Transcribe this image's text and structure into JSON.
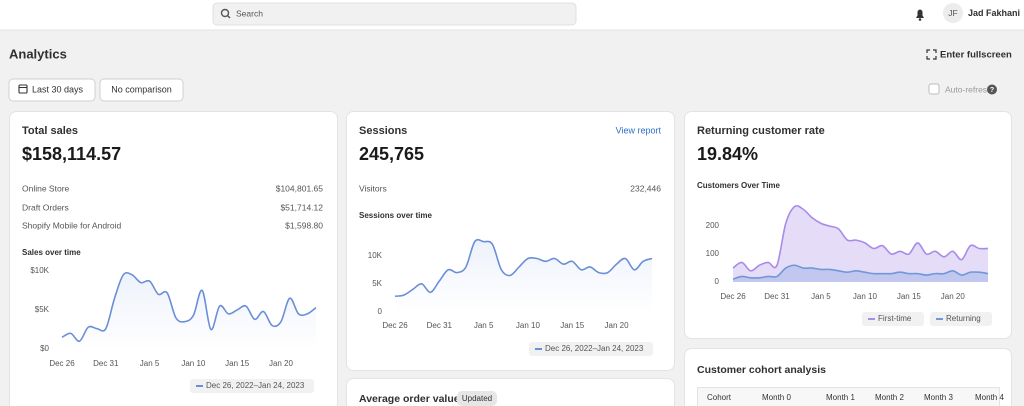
{
  "topbar": {
    "search": "Search",
    "avatar": "JF",
    "user": "Jad Fakhani"
  },
  "header": {
    "title": "Analytics",
    "fullscreen": "Enter fullscreen",
    "date_range": "Last 30 days",
    "comparison": "No comparison",
    "auto_refresh": "Auto-refresh"
  },
  "total_sales": {
    "title": "Total sales",
    "value": "$158,114.57",
    "rows": [
      [
        "Online Store",
        "$104,801.65"
      ],
      [
        "Draft Orders",
        "$51,714.12"
      ],
      [
        "Shopify Mobile for Android",
        "$1,598.80"
      ]
    ]
  },
  "sessions": {
    "title": "Sessions",
    "link": "View report",
    "value": "245,765",
    "rows": [
      [
        "Visitors",
        "232,446"
      ]
    ]
  },
  "returning": {
    "title": "Returning customer rate",
    "value": "19.84%"
  },
  "cohort": {
    "title": "Customer cohort analysis",
    "columns": [
      "Cohort",
      "Month 0",
      "Month 1",
      "Month 2",
      "Month 3",
      "Month 4"
    ]
  },
  "average_order": {
    "title": "Average order value",
    "badge": "Updated"
  },
  "chart_data": [
    {
      "type": "line",
      "title": "Sales over time",
      "categories": [
        "Dec 26",
        null,
        null,
        null,
        null,
        "Dec 31",
        null,
        null,
        null,
        null,
        "Jan 5",
        null,
        null,
        null,
        null,
        "Jan 10",
        null,
        null,
        null,
        null,
        "Jan 15",
        null,
        null,
        null,
        null,
        "Jan 20",
        null,
        null,
        null,
        null
      ],
      "series": [
        {
          "name": "Dec 26, 2022–Jan 24, 2023",
          "color": "#6a8fd8",
          "values": [
            1500,
            2000,
            1000,
            2800,
            2600,
            2600,
            6500,
            9500,
            9500,
            8500,
            8700,
            7000,
            7200,
            4000,
            3500,
            4300,
            7500,
            2500,
            5500,
            4500,
            5000,
            5500,
            3800,
            4800,
            3000,
            3500,
            6500,
            4500,
            4500,
            5300
          ]
        }
      ],
      "ylim": [
        0,
        10500
      ],
      "yticks": [
        {
          "value": 0,
          "label": "$0"
        },
        {
          "value": 5000,
          "label": "$5K"
        },
        {
          "value": 10000,
          "label": "$10K"
        }
      ]
    },
    {
      "type": "line",
      "title": "Sessions over time",
      "categories": [
        "Dec 26",
        null,
        null,
        null,
        null,
        "Dec 31",
        null,
        null,
        null,
        null,
        "Jan 5",
        null,
        null,
        null,
        null,
        "Jan 10",
        null,
        null,
        null,
        null,
        "Jan 15",
        null,
        null,
        null,
        null,
        "Jan 20",
        null,
        null,
        null,
        null
      ],
      "series": [
        {
          "name": "Dec 26, 2022–Jan 24, 2023",
          "color": "#6a8fd8",
          "values": [
            2800,
            3000,
            4000,
            5000,
            3500,
            5500,
            7500,
            7000,
            8000,
            12500,
            12500,
            12000,
            7500,
            6500,
            8000,
            9500,
            9500,
            9000,
            9500,
            8500,
            9000,
            7500,
            8000,
            7000,
            7000,
            8500,
            9500,
            7500,
            9000,
            9500
          ]
        }
      ],
      "ylim": [
        0,
        13500
      ],
      "yticks": [
        0,
        {
          "value": 5000,
          "label": "5K"
        },
        {
          "value": 10000,
          "label": "10K"
        }
      ]
    },
    {
      "type": "area",
      "title": "Customers Over Time",
      "categories": [
        "Dec 26",
        null,
        null,
        null,
        null,
        "Dec 31",
        null,
        null,
        null,
        null,
        "Jan 5",
        null,
        null,
        null,
        null,
        "Jan 10",
        null,
        null,
        null,
        null,
        "Jan 15",
        null,
        null,
        null,
        null,
        "Jan 20",
        null,
        null,
        null,
        null
      ],
      "series": [
        {
          "name": "First-time",
          "color": "#a98be8",
          "values": [
            50,
            70,
            40,
            60,
            70,
            60,
            210,
            270,
            260,
            230,
            210,
            200,
            190,
            150,
            150,
            140,
            120,
            130,
            100,
            110,
            100,
            140,
            100,
            110,
            90,
            110,
            80,
            130,
            120,
            120
          ]
        },
        {
          "name": "Returning",
          "color": "#6f97d9",
          "values": [
            10,
            20,
            15,
            15,
            20,
            20,
            50,
            60,
            50,
            50,
            45,
            45,
            40,
            35,
            40,
            35,
            30,
            30,
            30,
            35,
            30,
            30,
            25,
            30,
            30,
            40,
            25,
            35,
            35,
            30
          ]
        }
      ],
      "ylim": [
        0,
        290
      ],
      "yticks": [
        0,
        100,
        200
      ]
    }
  ]
}
